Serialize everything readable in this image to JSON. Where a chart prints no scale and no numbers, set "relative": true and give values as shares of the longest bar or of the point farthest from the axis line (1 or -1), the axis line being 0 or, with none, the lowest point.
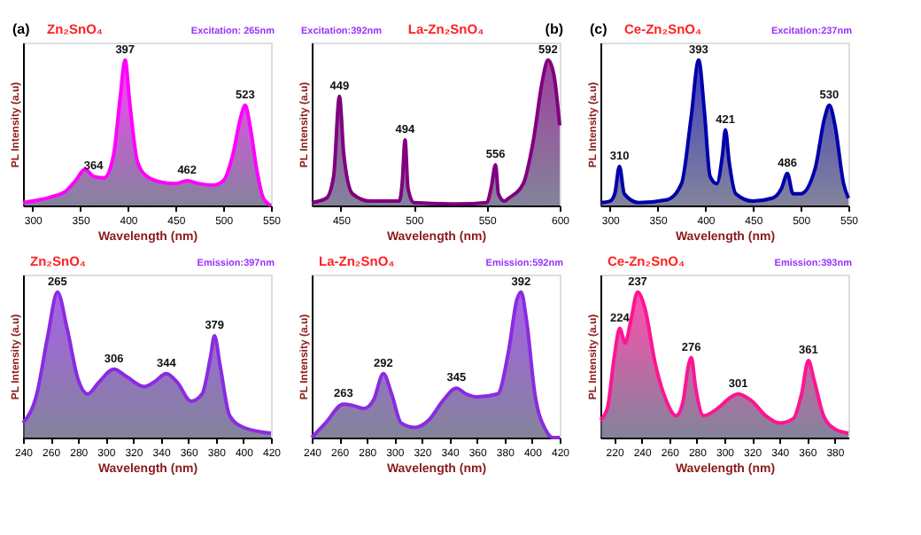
{
  "chart_data": [
    {
      "type": "area",
      "title": "Zn₂SnO₄",
      "xlabel": "Wavelength (nm)",
      "ylabel": "PL Intensity (a.u)",
      "relative": true,
      "tick_labels": "x",
      "xlim": [
        290,
        550
      ],
      "xticks": [
        300,
        350,
        400,
        450,
        500,
        550
      ],
      "x": [
        290,
        300,
        320,
        335,
        345,
        355,
        364,
        375,
        385,
        392,
        397,
        402,
        410,
        420,
        435,
        450,
        462,
        475,
        490,
        500,
        510,
        518,
        523,
        528,
        535,
        542,
        550
      ],
      "series": [
        {
          "color": "#ff00ff",
          "values": [
            0.02,
            0.03,
            0.06,
            0.1,
            0.17,
            0.25,
            0.2,
            0.19,
            0.35,
            0.75,
            1.0,
            0.7,
            0.3,
            0.2,
            0.16,
            0.15,
            0.17,
            0.15,
            0.14,
            0.17,
            0.35,
            0.6,
            0.69,
            0.55,
            0.25,
            0.05,
            0.0
          ]
        }
      ],
      "annotations": [
        "(a)",
        "Excitation: 265nm",
        {
          "text": "364",
          "x": 364,
          "y": 0.2
        },
        {
          "text": "397",
          "x": 397,
          "y": 1.0
        },
        {
          "text": "462",
          "x": 462,
          "y": 0.17
        },
        {
          "text": "523",
          "x": 523,
          "y": 0.69
        }
      ]
    },
    {
      "type": "area",
      "title": "La-Zn₂SnO₄",
      "xlabel": "Wavelength (nm)",
      "ylabel": "PL Intensity (a.u)",
      "relative": true,
      "tick_labels": "x",
      "xlim": [
        430,
        600
      ],
      "xticks": [
        450,
        500,
        550,
        600
      ],
      "x": [
        430,
        440,
        445,
        449,
        452,
        458,
        470,
        490,
        492,
        494,
        496,
        500,
        530,
        550,
        553,
        556,
        558,
        562,
        565,
        575,
        582,
        588,
        592,
        596,
        600
      ],
      "series": [
        {
          "color": "#800080",
          "values": [
            0.02,
            0.05,
            0.2,
            0.75,
            0.35,
            0.08,
            0.03,
            0.03,
            0.15,
            0.45,
            0.12,
            0.02,
            0.01,
            0.02,
            0.12,
            0.28,
            0.08,
            0.03,
            0.05,
            0.15,
            0.45,
            0.85,
            1.0,
            0.9,
            0.55
          ]
        }
      ],
      "annotations": [
        "Excitation:392nm",
        "(b)",
        {
          "text": "449",
          "x": 449,
          "y": 0.75
        },
        {
          "text": "494",
          "x": 494,
          "y": 0.45
        },
        {
          "text": "556",
          "x": 556,
          "y": 0.28
        },
        {
          "text": "592",
          "x": 592,
          "y": 1.0
        }
      ]
    },
    {
      "type": "area",
      "title": "Ce-Zn₂SnO₄",
      "xlabel": "Wavelength (nm)",
      "ylabel": "PL Intensity (a.u)",
      "relative": true,
      "tick_labels": "x",
      "xlim": [
        290,
        550
      ],
      "xticks": [
        300,
        350,
        400,
        450,
        500,
        550
      ],
      "x": [
        290,
        300,
        305,
        310,
        315,
        330,
        360,
        375,
        385,
        393,
        399,
        405,
        412,
        418,
        421,
        425,
        432,
        450,
        470,
        480,
        486,
        492,
        500,
        515,
        525,
        530,
        536,
        545,
        550
      ],
      "series": [
        {
          "color": "#0000aa",
          "values": [
            0.02,
            0.03,
            0.08,
            0.27,
            0.08,
            0.02,
            0.04,
            0.15,
            0.6,
            1.0,
            0.65,
            0.2,
            0.15,
            0.35,
            0.52,
            0.3,
            0.08,
            0.03,
            0.05,
            0.12,
            0.22,
            0.08,
            0.08,
            0.25,
            0.6,
            0.69,
            0.55,
            0.15,
            0.05
          ]
        }
      ],
      "annotations": [
        "(c)",
        "Excitation:237nm",
        {
          "text": "310",
          "x": 310,
          "y": 0.27
        },
        {
          "text": "393",
          "x": 393,
          "y": 1.0
        },
        {
          "text": "421",
          "x": 421,
          "y": 0.52
        },
        {
          "text": "486",
          "x": 486,
          "y": 0.22
        },
        {
          "text": "530",
          "x": 530,
          "y": 0.69
        }
      ]
    },
    {
      "type": "area",
      "title": "Zn₂SnO₄",
      "xlabel": "Wavelength (nm)",
      "ylabel": "PL Intensity (a.u)",
      "relative": true,
      "tick_labels": "x",
      "xlim": [
        240,
        420
      ],
      "xticks": [
        240,
        260,
        280,
        300,
        320,
        340,
        360,
        380,
        400,
        420
      ],
      "x": [
        240,
        250,
        258,
        265,
        272,
        280,
        287,
        295,
        306,
        315,
        328,
        335,
        344,
        352,
        362,
        370,
        376,
        379,
        383,
        390,
        400,
        420
      ],
      "series": [
        {
          "color": "#8a2be2",
          "values": [
            0.1,
            0.3,
            0.7,
            1.0,
            0.75,
            0.4,
            0.3,
            0.38,
            0.47,
            0.42,
            0.35,
            0.38,
            0.44,
            0.38,
            0.25,
            0.3,
            0.55,
            0.7,
            0.5,
            0.15,
            0.07,
            0.03
          ]
        }
      ],
      "annotations": [
        "Emission:397nm",
        {
          "text": "265",
          "x": 265,
          "y": 1.0
        },
        {
          "text": "306",
          "x": 306,
          "y": 0.47
        },
        {
          "text": "344",
          "x": 344,
          "y": 0.44
        },
        {
          "text": "379",
          "x": 379,
          "y": 0.7
        }
      ]
    },
    {
      "type": "area",
      "title": "La-Zn₂SnO₄",
      "xlabel": "Wavelength (nm)",
      "ylabel": "PL Intensity (a.u)",
      "relative": true,
      "tick_labels": "x",
      "xlim": [
        240,
        420
      ],
      "xticks": [
        240,
        260,
        280,
        300,
        320,
        340,
        360,
        380,
        400,
        420
      ],
      "x": [
        240,
        250,
        263,
        270,
        278,
        285,
        292,
        298,
        305,
        315,
        325,
        335,
        345,
        352,
        360,
        375,
        383,
        389,
        392,
        396,
        402,
        410,
        415,
        420
      ],
      "series": [
        {
          "color": "#8a2be2",
          "values": [
            0.0,
            0.1,
            0.23,
            0.22,
            0.2,
            0.26,
            0.44,
            0.3,
            0.1,
            0.07,
            0.12,
            0.25,
            0.34,
            0.3,
            0.28,
            0.3,
            0.6,
            0.95,
            1.0,
            0.8,
            0.3,
            0.05,
            0.0,
            0.0
          ]
        }
      ],
      "annotations": [
        "Emission:592nm",
        {
          "text": "263",
          "x": 263,
          "y": 0.23
        },
        {
          "text": "292",
          "x": 292,
          "y": 0.44
        },
        {
          "text": "345",
          "x": 345,
          "y": 0.34
        },
        {
          "text": "392",
          "x": 392,
          "y": 1.0
        }
      ]
    },
    {
      "type": "area",
      "title": "Ce-Zn₂SnO₄",
      "xlabel": "Wavelength (nm)",
      "ylabel": "PL Intensity (a.u)",
      "relative": true,
      "tick_labels": "x",
      "xlim": [
        210,
        390
      ],
      "xticks": [
        220,
        240,
        260,
        280,
        300,
        320,
        340,
        360,
        380
      ],
      "x": [
        210,
        215,
        220,
        224,
        228,
        232,
        237,
        242,
        250,
        258,
        265,
        270,
        274,
        276,
        279,
        285,
        295,
        305,
        310,
        320,
        330,
        340,
        350,
        356,
        361,
        365,
        372,
        380,
        390
      ],
      "series": [
        {
          "color": "#ff1493",
          "values": [
            0.12,
            0.2,
            0.55,
            0.75,
            0.65,
            0.8,
            1.0,
            0.9,
            0.5,
            0.25,
            0.15,
            0.25,
            0.5,
            0.55,
            0.35,
            0.15,
            0.2,
            0.28,
            0.3,
            0.25,
            0.15,
            0.1,
            0.13,
            0.3,
            0.53,
            0.4,
            0.15,
            0.06,
            0.03
          ]
        }
      ],
      "annotations": [
        "Emission:393nm",
        {
          "text": "224",
          "x": 224,
          "y": 0.75
        },
        {
          "text": "237",
          "x": 237,
          "y": 1.0
        },
        {
          "text": "276",
          "x": 276,
          "y": 0.55
        },
        {
          "text": "301",
          "x": 310,
          "y": 0.3
        },
        {
          "text": "361",
          "x": 361,
          "y": 0.53
        }
      ]
    }
  ]
}
